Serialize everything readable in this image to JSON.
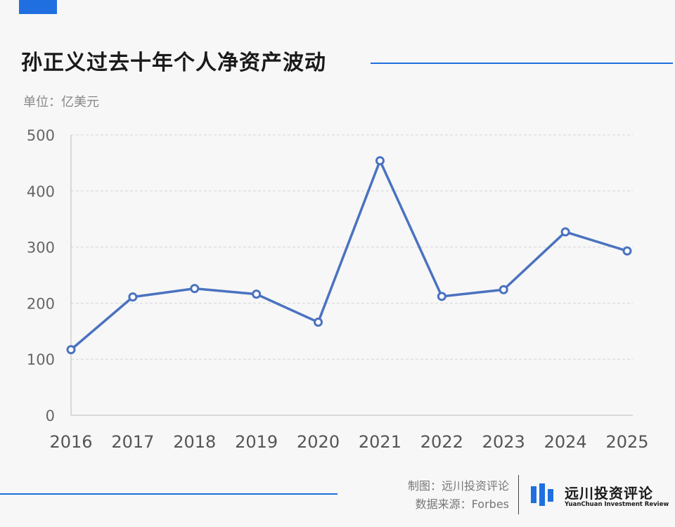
{
  "header": {
    "title": "孙正义过去十年个人净资产波动",
    "unit": "单位：亿美元"
  },
  "chart_data": {
    "type": "line",
    "title": "孙正义过去十年个人净资产波动",
    "ylabel": "单位：亿美元",
    "categories": [
      "2016",
      "2017",
      "2018",
      "2019",
      "2020",
      "2021",
      "2022",
      "2023",
      "2024",
      "2025"
    ],
    "values": [
      117,
      211,
      226,
      216,
      166,
      454,
      212,
      224,
      327,
      293
    ],
    "ylim": [
      0,
      500
    ],
    "yticks": [
      "0",
      "100",
      "200",
      "300",
      "400",
      "500"
    ],
    "grid": true,
    "line_color": "#4a72c0"
  },
  "footer": {
    "maker": "制图：远川投资评论",
    "source": "数据来源：Forbes",
    "logo_cn": "远川投资评论",
    "logo_en": "YuanChuan Investment Review"
  },
  "colors": {
    "accent": "#1f6fe0",
    "line": "#4a72c0"
  }
}
